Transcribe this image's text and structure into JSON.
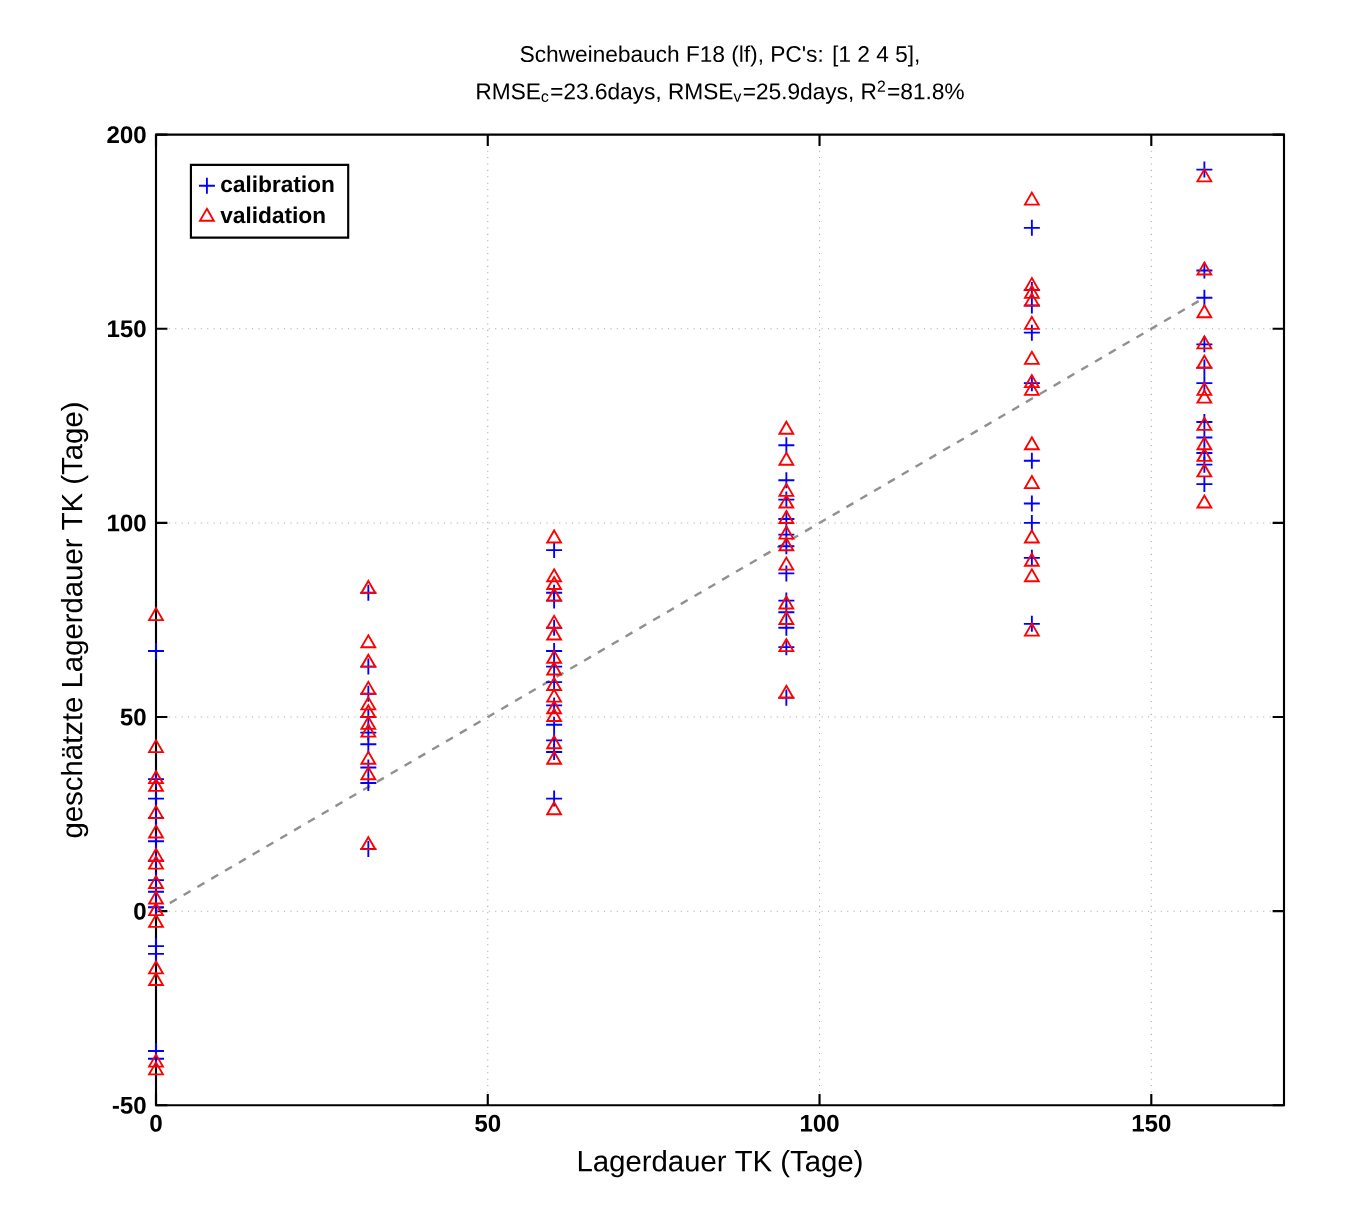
{
  "chart_data": {
    "type": "scatter",
    "title": "Schweinebauch F18 (lf), PC's: [1  2  4  5],",
    "subtitle": "RMSE$_{c}$=23.6days, RMSE$_{v}$=25.9days, R$^{2}$=81.8%",
    "xlabel": "Lagerdauer TK (Tage)",
    "ylabel": "geschätzte Lagerdauer TK (Tage)",
    "xlim": [
      0,
      170
    ],
    "ylim": [
      -50,
      200
    ],
    "xticks": [
      0,
      50,
      100,
      150
    ],
    "yticks": [
      -50,
      0,
      50,
      100,
      150,
      200
    ],
    "grid": true,
    "legend": "top left",
    "series": [
      {
        "name": "calibration",
        "color": "#0000ff",
        "marker": "cross",
        "x": [
          0,
          0,
          0,
          0,
          0,
          0,
          0,
          0,
          0,
          0,
          0,
          0,
          0,
          32,
          32,
          32,
          32,
          32,
          32,
          32,
          32,
          32,
          60,
          60,
          60,
          60,
          60,
          60,
          60,
          60,
          60,
          60,
          60,
          60,
          95,
          95,
          95,
          95,
          95,
          95,
          95,
          95,
          95,
          95,
          95,
          95,
          132,
          132,
          132,
          132,
          132,
          132,
          132,
          132,
          132,
          132,
          158,
          158,
          158,
          158,
          158,
          158,
          158,
          158,
          158,
          158,
          158
        ],
        "values": [
          67,
          34,
          29,
          24,
          18,
          13,
          8,
          5,
          1,
          -9,
          -11,
          -36,
          -38,
          82,
          63,
          56,
          50,
          46,
          43,
          37,
          33,
          16,
          93,
          82,
          80,
          73,
          67,
          63,
          59,
          53,
          48,
          44,
          41,
          29,
          120,
          111,
          106,
          101,
          97,
          94,
          87,
          80,
          77,
          73,
          68,
          55,
          176,
          160,
          156,
          149,
          136,
          116,
          105,
          100,
          91,
          74,
          191,
          165,
          158,
          146,
          140,
          136,
          126,
          122,
          118,
          115,
          110
        ]
      },
      {
        "name": "validation",
        "color": "#ff0000",
        "marker": "triangle",
        "x": [
          0,
          0,
          0,
          0,
          0,
          0,
          0,
          0,
          0,
          0,
          0,
          0,
          0,
          0,
          0,
          0,
          32,
          32,
          32,
          32,
          32,
          32,
          32,
          32,
          32,
          32,
          32,
          60,
          60,
          60,
          60,
          60,
          60,
          60,
          60,
          60,
          60,
          60,
          60,
          60,
          60,
          60,
          95,
          95,
          95,
          95,
          95,
          95,
          95,
          95,
          95,
          95,
          95,
          95,
          132,
          132,
          132,
          132,
          132,
          132,
          132,
          132,
          132,
          132,
          132,
          132,
          132,
          132,
          158,
          158,
          158,
          158,
          158,
          158,
          158,
          158,
          158,
          158,
          158,
          158
        ],
        "values": [
          76,
          42,
          34,
          32,
          25,
          20,
          14,
          12,
          7,
          3,
          0,
          -3,
          -15,
          -18,
          -39,
          -41,
          83,
          69,
          64,
          57,
          53,
          51,
          48,
          46,
          39,
          35,
          17,
          96,
          86,
          84,
          81,
          74,
          71,
          65,
          62,
          58,
          55,
          52,
          50,
          43,
          39,
          26,
          124,
          116,
          108,
          105,
          101,
          97,
          94,
          89,
          79,
          75,
          68,
          56,
          183,
          161,
          159,
          157,
          151,
          142,
          136,
          134,
          120,
          110,
          96,
          90,
          86,
          72,
          189,
          165,
          154,
          146,
          141,
          134,
          132,
          125,
          120,
          117,
          113,
          105
        ]
      },
      {
        "type": "line",
        "color": "#909090",
        "marker": "none",
        "line_style": "dashed",
        "x": [
          0,
          158
        ],
        "values": [
          0,
          158
        ]
      }
    ]
  }
}
